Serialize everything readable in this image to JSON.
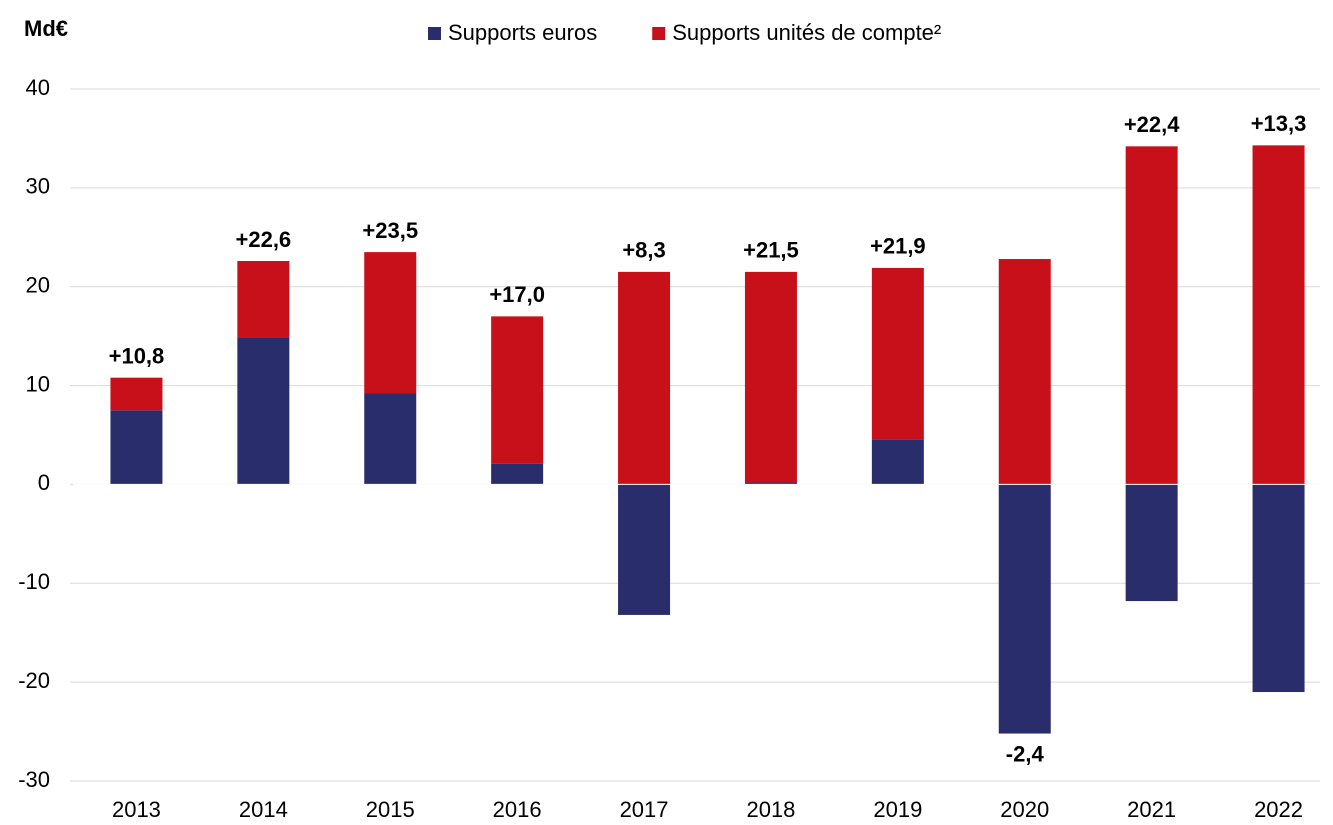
{
  "chart_data": {
    "type": "stacked_bar",
    "y_label": "Md€",
    "categories": [
      "2013",
      "2014",
      "2015",
      "2016",
      "2017",
      "2018",
      "2019",
      "2020",
      "2021",
      "2022"
    ],
    "series": [
      {
        "name": "Supports euros",
        "color": "#2a2d6b",
        "values": [
          7.5,
          14.9,
          9.2,
          2.1,
          -13.2,
          0.2,
          4.5,
          -25.2,
          -11.8,
          -21.0
        ]
      },
      {
        "name": "Supports unités de compte²",
        "color": "#c8101a",
        "values": [
          3.3,
          7.7,
          14.3,
          14.9,
          21.5,
          21.3,
          17.4,
          22.8,
          34.2,
          34.3
        ]
      }
    ],
    "totals": {
      "values": [
        10.8,
        22.6,
        23.5,
        17.0,
        8.3,
        21.5,
        21.9,
        -2.4,
        22.4,
        13.3
      ],
      "value_labels": [
        "+10,8",
        "+22,6",
        "+23,5",
        "+17,0",
        "+8,3",
        "+21,5",
        "+21,9",
        "-2,4",
        "+22,4",
        "+13,3"
      ]
    },
    "ylim": [
      -30,
      40
    ],
    "yticks": [
      -30,
      -20,
      -10,
      0,
      10,
      20,
      30,
      40
    ],
    "grid": true,
    "legend": "top"
  }
}
